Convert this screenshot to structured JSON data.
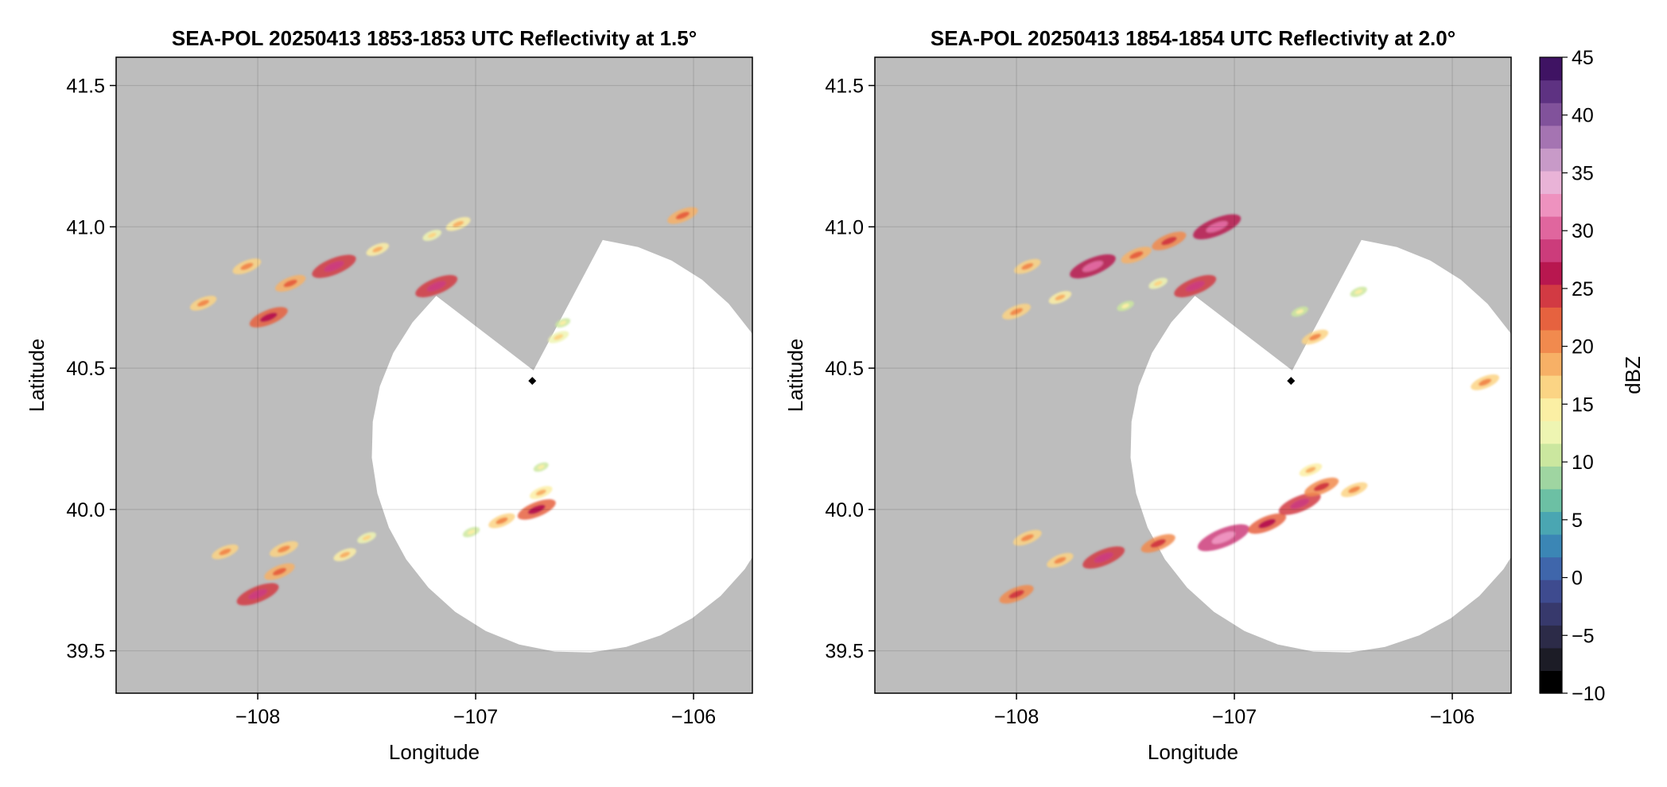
{
  "chart_data": [
    {
      "type": "heatmap",
      "title": "SEA-POL 20250413 1853-1853 UTC Reflectivity at 1.5°",
      "xlabel": "Longitude",
      "ylabel": "Latitude",
      "xlim": [
        -108.65,
        -105.73
      ],
      "ylim": [
        39.35,
        41.6
      ],
      "xticks": [
        -108,
        -107,
        -106
      ],
      "xtick_labels": [
        "−108",
        "−107",
        "−106"
      ],
      "yticks": [
        39.5,
        40.0,
        40.5,
        41.0,
        41.5
      ],
      "ytick_labels": [
        "39.5",
        "40.0",
        "40.5",
        "41.0",
        "41.5"
      ],
      "grid": true,
      "radar_site": {
        "lon": -106.74,
        "lat": 40.455
      },
      "cells": [
        {
          "lon": -107.65,
          "lat": 40.86,
          "dbz": 25
        },
        {
          "lon": -107.85,
          "lat": 40.8,
          "dbz": 18
        },
        {
          "lon": -107.45,
          "lat": 40.92,
          "dbz": 14
        },
        {
          "lon": -107.2,
          "lat": 40.97,
          "dbz": 12
        },
        {
          "lon": -107.08,
          "lat": 41.01,
          "dbz": 15
        },
        {
          "lon": -108.05,
          "lat": 40.86,
          "dbz": 17
        },
        {
          "lon": -107.95,
          "lat": 40.68,
          "dbz": 22
        },
        {
          "lon": -108.25,
          "lat": 40.73,
          "dbz": 16
        },
        {
          "lon": -107.18,
          "lat": 40.79,
          "dbz": 24
        },
        {
          "lon": -106.62,
          "lat": 40.61,
          "dbz": 13
        },
        {
          "lon": -106.6,
          "lat": 40.66,
          "dbz": 10
        },
        {
          "lon": -106.7,
          "lat": 40.06,
          "dbz": 14
        },
        {
          "lon": -106.72,
          "lat": 40.0,
          "dbz": 22
        },
        {
          "lon": -106.88,
          "lat": 39.96,
          "dbz": 16
        },
        {
          "lon": -107.02,
          "lat": 39.92,
          "dbz": 11
        },
        {
          "lon": -106.7,
          "lat": 40.15,
          "dbz": 10
        },
        {
          "lon": -107.5,
          "lat": 39.9,
          "dbz": 12
        },
        {
          "lon": -107.6,
          "lat": 39.84,
          "dbz": 14
        },
        {
          "lon": -107.88,
          "lat": 39.86,
          "dbz": 17
        },
        {
          "lon": -107.9,
          "lat": 39.78,
          "dbz": 18
        },
        {
          "lon": -108.0,
          "lat": 39.7,
          "dbz": 24
        },
        {
          "lon": -108.15,
          "lat": 39.85,
          "dbz": 16
        },
        {
          "lon": -106.05,
          "lat": 41.04,
          "dbz": 18
        }
      ]
    },
    {
      "type": "heatmap",
      "title": "SEA-POL 20250413 1854-1854 UTC Reflectivity at 2.0°",
      "xlabel": "Longitude",
      "ylabel": "Latitude",
      "xlim": [
        -108.65,
        -105.73
      ],
      "ylim": [
        39.35,
        41.6
      ],
      "xticks": [
        -108,
        -107,
        -106
      ],
      "xtick_labels": [
        "−108",
        "−107",
        "−106"
      ],
      "yticks": [
        39.5,
        40.0,
        40.5,
        41.0,
        41.5
      ],
      "ytick_labels": [
        "39.5",
        "40.0",
        "40.5",
        "41.0",
        "41.5"
      ],
      "grid": true,
      "radar_site": {
        "lon": -106.74,
        "lat": 40.455
      },
      "cells": [
        {
          "lon": -107.65,
          "lat": 40.86,
          "dbz": 26
        },
        {
          "lon": -107.45,
          "lat": 40.9,
          "dbz": 18
        },
        {
          "lon": -107.3,
          "lat": 40.95,
          "dbz": 20
        },
        {
          "lon": -107.08,
          "lat": 41.0,
          "dbz": 27
        },
        {
          "lon": -107.35,
          "lat": 40.8,
          "dbz": 12
        },
        {
          "lon": -107.5,
          "lat": 40.72,
          "dbz": 11
        },
        {
          "lon": -107.18,
          "lat": 40.79,
          "dbz": 24
        },
        {
          "lon": -107.95,
          "lat": 40.86,
          "dbz": 16
        },
        {
          "lon": -108.0,
          "lat": 40.7,
          "dbz": 17
        },
        {
          "lon": -107.8,
          "lat": 40.75,
          "dbz": 14
        },
        {
          "lon": -106.63,
          "lat": 40.61,
          "dbz": 16
        },
        {
          "lon": -106.7,
          "lat": 40.7,
          "dbz": 11
        },
        {
          "lon": -107.6,
          "lat": 39.83,
          "dbz": 24
        },
        {
          "lon": -107.35,
          "lat": 39.88,
          "dbz": 20
        },
        {
          "lon": -107.05,
          "lat": 39.9,
          "dbz": 29
        },
        {
          "lon": -106.85,
          "lat": 39.95,
          "dbz": 22
        },
        {
          "lon": -106.7,
          "lat": 40.02,
          "dbz": 24
        },
        {
          "lon": -106.6,
          "lat": 40.08,
          "dbz": 20
        },
        {
          "lon": -106.45,
          "lat": 40.07,
          "dbz": 16
        },
        {
          "lon": -106.65,
          "lat": 40.14,
          "dbz": 14
        },
        {
          "lon": -107.8,
          "lat": 39.82,
          "dbz": 16
        },
        {
          "lon": -107.95,
          "lat": 39.9,
          "dbz": 17
        },
        {
          "lon": -108.0,
          "lat": 39.7,
          "dbz": 20
        },
        {
          "lon": -105.85,
          "lat": 40.45,
          "dbz": 17
        },
        {
          "lon": -106.43,
          "lat": 40.77,
          "dbz": 11
        }
      ]
    }
  ],
  "colorbar": {
    "label": "dBZ",
    "min": -10,
    "max": 45,
    "ticks": [
      45,
      40,
      35,
      30,
      25,
      20,
      15,
      10,
      5,
      0,
      -5,
      -10
    ],
    "tick_labels": [
      "45",
      "40",
      "35",
      "30",
      "25",
      "20",
      "15",
      "10",
      "5",
      "0",
      "−5",
      "−10"
    ],
    "colors": [
      "#000000",
      "#1c1c26",
      "#2c2b48",
      "#37396c",
      "#3e4b8f",
      "#3f66ab",
      "#3b86b5",
      "#4aa6b2",
      "#6cc0a4",
      "#9fd5a1",
      "#cbe79f",
      "#eef5b2",
      "#fbefa4",
      "#fbd484",
      "#f7b066",
      "#f18a4e",
      "#e6623f",
      "#d23a43",
      "#b8174f",
      "#cc3c7b",
      "#e0669e",
      "#ee92bf",
      "#e9b3d7",
      "#c89ac8",
      "#a574b2",
      "#81529b",
      "#5e3282",
      "#3f1363"
    ]
  }
}
